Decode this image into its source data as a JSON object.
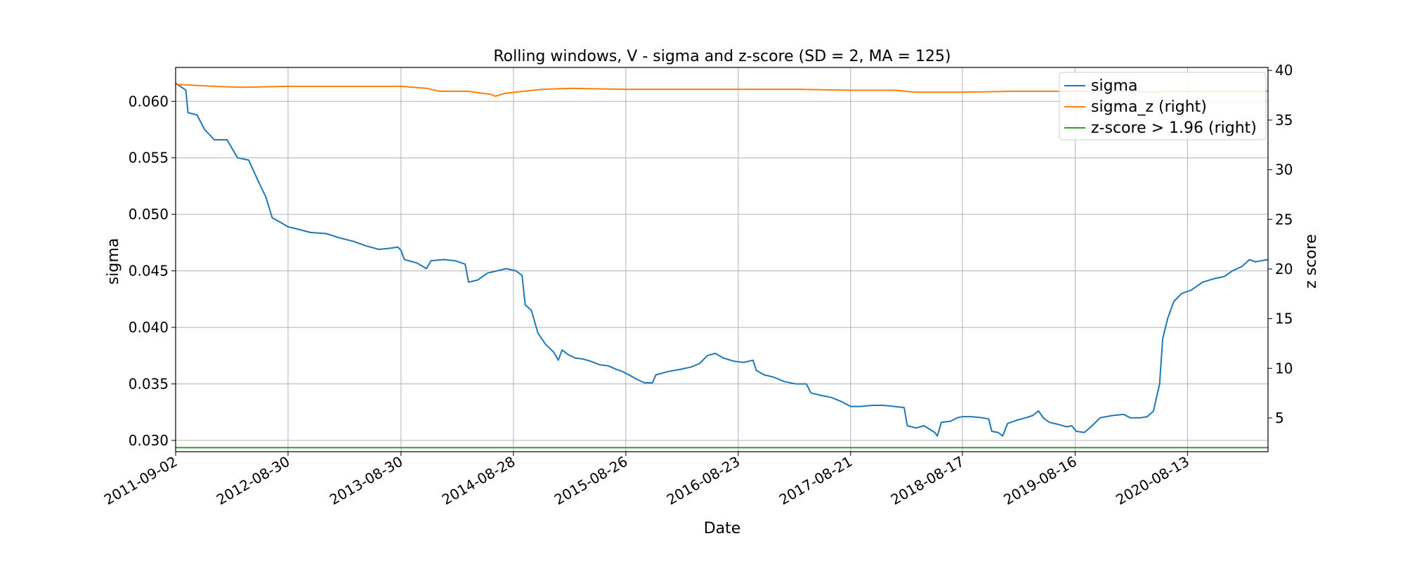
{
  "chart_data": {
    "type": "line",
    "title": "Rolling windows, V - sigma and z-score (SD = 2, MA = 125)",
    "xlabel": "Date",
    "ylabel": "sigma",
    "ylabel_right": "z score",
    "x_range": [
      "2011-09-02",
      "2021-04-30"
    ],
    "x_ticks": [
      "2011-09-02",
      "2012-08-30",
      "2013-08-30",
      "2014-08-28",
      "2015-08-26",
      "2016-08-23",
      "2017-08-21",
      "2018-08-17",
      "2019-08-16",
      "2020-08-13"
    ],
    "ylim": [
      0.029,
      0.063
    ],
    "y_ticks": [
      "0.030",
      "0.035",
      "0.040",
      "0.045",
      "0.050",
      "0.055",
      "0.060"
    ],
    "ylim_right": [
      1.6,
      40.3
    ],
    "y_ticks_right": [
      "5",
      "10",
      "15",
      "20",
      "25",
      "30",
      "35",
      "40"
    ],
    "grid": true,
    "legend_position": "top-right",
    "colors": {
      "sigma": "#1f77b4",
      "sigma_z": "#ff7f0e",
      "zscore": "#2ca02c",
      "grid": "#b0b0b0"
    },
    "series": [
      {
        "name": "sigma",
        "axis": "left",
        "color": "#1f77b4",
        "points": [
          [
            "2011-09-02",
            0.0616
          ],
          [
            "2011-10-05",
            0.061
          ],
          [
            "2011-10-12",
            0.059
          ],
          [
            "2011-11-10",
            0.0588
          ],
          [
            "2011-12-05",
            0.0575
          ],
          [
            "2012-01-05",
            0.0566
          ],
          [
            "2012-02-15",
            0.0566
          ],
          [
            "2012-03-20",
            0.055
          ],
          [
            "2012-04-25",
            0.0548
          ],
          [
            "2012-05-25",
            0.053
          ],
          [
            "2012-06-20",
            0.0515
          ],
          [
            "2012-07-10",
            0.0497
          ],
          [
            "2012-08-05",
            0.0493
          ],
          [
            "2012-08-30",
            0.0489
          ],
          [
            "2012-09-30",
            0.0487
          ],
          [
            "2012-11-10",
            0.0484
          ],
          [
            "2012-12-31",
            0.0483
          ],
          [
            "2013-02-15",
            0.0479
          ],
          [
            "2013-03-31",
            0.0476
          ],
          [
            "2013-05-10",
            0.0472
          ],
          [
            "2013-06-20",
            0.0469
          ],
          [
            "2013-07-25",
            0.047
          ],
          [
            "2013-08-20",
            0.0471
          ],
          [
            "2013-08-30",
            0.0468
          ],
          [
            "2013-09-10",
            0.046
          ],
          [
            "2013-10-20",
            0.0457
          ],
          [
            "2013-11-20",
            0.0452
          ],
          [
            "2013-12-05",
            0.0459
          ],
          [
            "2014-01-15",
            0.046
          ],
          [
            "2014-02-20",
            0.0459
          ],
          [
            "2014-03-25",
            0.0456
          ],
          [
            "2014-04-05",
            0.044
          ],
          [
            "2014-05-05",
            0.0442
          ],
          [
            "2014-06-05",
            0.0448
          ],
          [
            "2014-07-05",
            0.045
          ],
          [
            "2014-08-05",
            0.0452
          ],
          [
            "2014-09-05",
            0.045
          ],
          [
            "2014-09-25",
            0.0446
          ],
          [
            "2014-10-05",
            0.042
          ],
          [
            "2014-10-25",
            0.0415
          ],
          [
            "2014-11-15",
            0.0395
          ],
          [
            "2014-12-10",
            0.0385
          ],
          [
            "2015-01-05",
            0.0378
          ],
          [
            "2015-01-20",
            0.0371
          ],
          [
            "2015-02-01",
            0.038
          ],
          [
            "2015-02-20",
            0.0376
          ],
          [
            "2015-03-15",
            0.0373
          ],
          [
            "2015-04-10",
            0.0372
          ],
          [
            "2015-05-05",
            0.037
          ],
          [
            "2015-06-01",
            0.0367
          ],
          [
            "2015-06-30",
            0.0366
          ],
          [
            "2015-07-25",
            0.0363
          ],
          [
            "2015-08-15",
            0.0361
          ],
          [
            "2015-09-05",
            0.0358
          ],
          [
            "2015-10-01",
            0.0354
          ],
          [
            "2015-10-25",
            0.0351
          ],
          [
            "2015-11-20",
            0.0351
          ],
          [
            "2015-12-01",
            0.0358
          ],
          [
            "2016-01-10",
            0.0361
          ],
          [
            "2016-02-20",
            0.0363
          ],
          [
            "2016-03-25",
            0.0365
          ],
          [
            "2016-04-20",
            0.0368
          ],
          [
            "2016-05-15",
            0.0375
          ],
          [
            "2016-06-10",
            0.0377
          ],
          [
            "2016-07-05",
            0.0373
          ],
          [
            "2016-08-10",
            0.037
          ],
          [
            "2016-09-10",
            0.0369
          ],
          [
            "2016-10-10",
            0.0371
          ],
          [
            "2016-10-20",
            0.0362
          ],
          [
            "2016-11-15",
            0.0358
          ],
          [
            "2016-12-15",
            0.0356
          ],
          [
            "2017-01-20",
            0.0352
          ],
          [
            "2017-02-25",
            0.035
          ],
          [
            "2017-03-31",
            0.035
          ],
          [
            "2017-04-15",
            0.0342
          ],
          [
            "2017-05-15",
            0.034
          ],
          [
            "2017-06-20",
            0.0338
          ],
          [
            "2017-07-25",
            0.0334
          ],
          [
            "2017-08-21",
            0.033
          ],
          [
            "2017-09-20",
            0.033
          ],
          [
            "2017-10-31",
            0.0331
          ],
          [
            "2017-12-05",
            0.0331
          ],
          [
            "2018-01-10",
            0.033
          ],
          [
            "2018-02-10",
            0.0329
          ],
          [
            "2018-02-20",
            0.0313
          ],
          [
            "2018-03-20",
            0.0311
          ],
          [
            "2018-04-15",
            0.0313
          ],
          [
            "2018-05-20",
            0.0307
          ],
          [
            "2018-05-28",
            0.0304
          ],
          [
            "2018-06-10",
            0.0316
          ],
          [
            "2018-07-10",
            0.0317
          ],
          [
            "2018-07-31",
            0.032
          ],
          [
            "2018-08-17",
            0.0321
          ],
          [
            "2018-09-15",
            0.0321
          ],
          [
            "2018-10-20",
            0.032
          ],
          [
            "2018-11-10",
            0.0319
          ],
          [
            "2018-11-20",
            0.0308
          ],
          [
            "2018-12-10",
            0.0307
          ],
          [
            "2018-12-25",
            0.0304
          ],
          [
            "2019-01-10",
            0.0315
          ],
          [
            "2019-02-10",
            0.0318
          ],
          [
            "2019-03-10",
            0.032
          ],
          [
            "2019-04-01",
            0.0322
          ],
          [
            "2019-04-20",
            0.0326
          ],
          [
            "2019-05-05",
            0.032
          ],
          [
            "2019-05-25",
            0.0316
          ],
          [
            "2019-06-25",
            0.0314
          ],
          [
            "2019-07-20",
            0.0312
          ],
          [
            "2019-08-05",
            0.0313
          ],
          [
            "2019-08-20",
            0.0308
          ],
          [
            "2019-09-15",
            0.0307
          ],
          [
            "2019-10-10",
            0.0313
          ],
          [
            "2019-11-05",
            0.032
          ],
          [
            "2019-12-15",
            0.0322
          ],
          [
            "2020-01-20",
            0.0323
          ],
          [
            "2020-02-10",
            0.032
          ],
          [
            "2020-03-15",
            0.032
          ],
          [
            "2020-04-05",
            0.0321
          ],
          [
            "2020-04-25",
            0.0326
          ],
          [
            "2020-05-15",
            0.035
          ],
          [
            "2020-05-25",
            0.039
          ],
          [
            "2020-06-10",
            0.0408
          ],
          [
            "2020-06-30",
            0.0423
          ],
          [
            "2020-07-25",
            0.043
          ],
          [
            "2020-08-25",
            0.0433
          ],
          [
            "2020-10-01",
            0.044
          ],
          [
            "2020-11-05",
            0.0443
          ],
          [
            "2020-12-10",
            0.0445
          ],
          [
            "2021-01-05",
            0.045
          ],
          [
            "2021-02-05",
            0.0454
          ],
          [
            "2021-03-01",
            0.046
          ],
          [
            "2021-03-20",
            0.0458
          ],
          [
            "2021-04-30",
            0.046
          ]
        ]
      },
      {
        "name": "sigma_z (right)",
        "axis": "right",
        "color": "#ff7f0e",
        "points": [
          [
            "2011-09-02",
            38.6
          ],
          [
            "2012-01-01",
            38.4
          ],
          [
            "2012-04-01",
            38.3
          ],
          [
            "2012-08-30",
            38.4
          ],
          [
            "2013-02-01",
            38.4
          ],
          [
            "2013-08-30",
            38.4
          ],
          [
            "2013-11-20",
            38.2
          ],
          [
            "2014-01-01",
            37.9
          ],
          [
            "2014-04-01",
            37.9
          ],
          [
            "2014-06-15",
            37.6
          ],
          [
            "2014-07-01",
            37.4
          ],
          [
            "2014-08-01",
            37.7
          ],
          [
            "2014-10-01",
            37.9
          ],
          [
            "2014-12-01",
            38.1
          ],
          [
            "2015-03-01",
            38.2
          ],
          [
            "2015-08-26",
            38.1
          ],
          [
            "2016-03-01",
            38.1
          ],
          [
            "2016-08-23",
            38.1
          ],
          [
            "2017-03-01",
            38.1
          ],
          [
            "2017-08-21",
            38.0
          ],
          [
            "2018-01-15",
            38.0
          ],
          [
            "2018-03-15",
            37.8
          ],
          [
            "2018-08-17",
            37.8
          ],
          [
            "2019-02-01",
            37.9
          ],
          [
            "2019-08-16",
            37.9
          ],
          [
            "2020-02-01",
            37.9
          ],
          [
            "2020-05-10",
            37.8
          ],
          [
            "2020-06-01",
            37.9
          ],
          [
            "2020-08-13",
            37.9
          ],
          [
            "2021-04-30",
            37.9
          ]
        ]
      },
      {
        "name": "z-score > 1.96 (right)",
        "axis": "right",
        "color": "#2ca02c",
        "points": [
          [
            "2011-09-02",
            2.0
          ],
          [
            "2021-04-30",
            2.0
          ]
        ]
      }
    ]
  }
}
